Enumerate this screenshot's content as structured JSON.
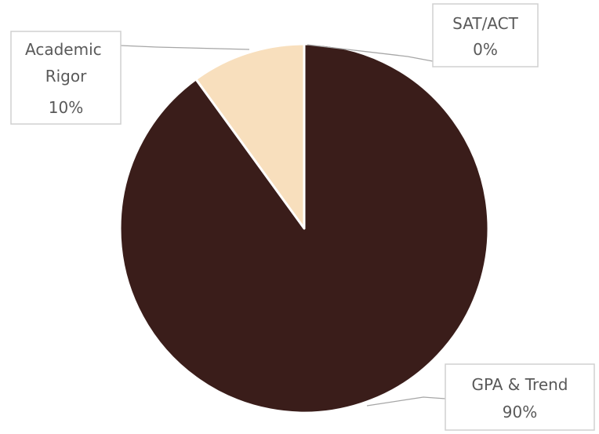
{
  "chart_data": {
    "type": "pie",
    "start_angle_deg": 0,
    "direction": "clockwise",
    "slice_border_color": "#ffffff",
    "slices": [
      {
        "label": "SAT/ACT",
        "value": 0,
        "value_label": "0%",
        "color": "#e8d3b4"
      },
      {
        "label": "GPA & Trend",
        "value": 90,
        "value_label": "90%",
        "color": "#3a1d1a"
      },
      {
        "label": "Academic Rigor",
        "value": 10,
        "value_label": "10%",
        "color": "#f8dfbd"
      }
    ]
  }
}
